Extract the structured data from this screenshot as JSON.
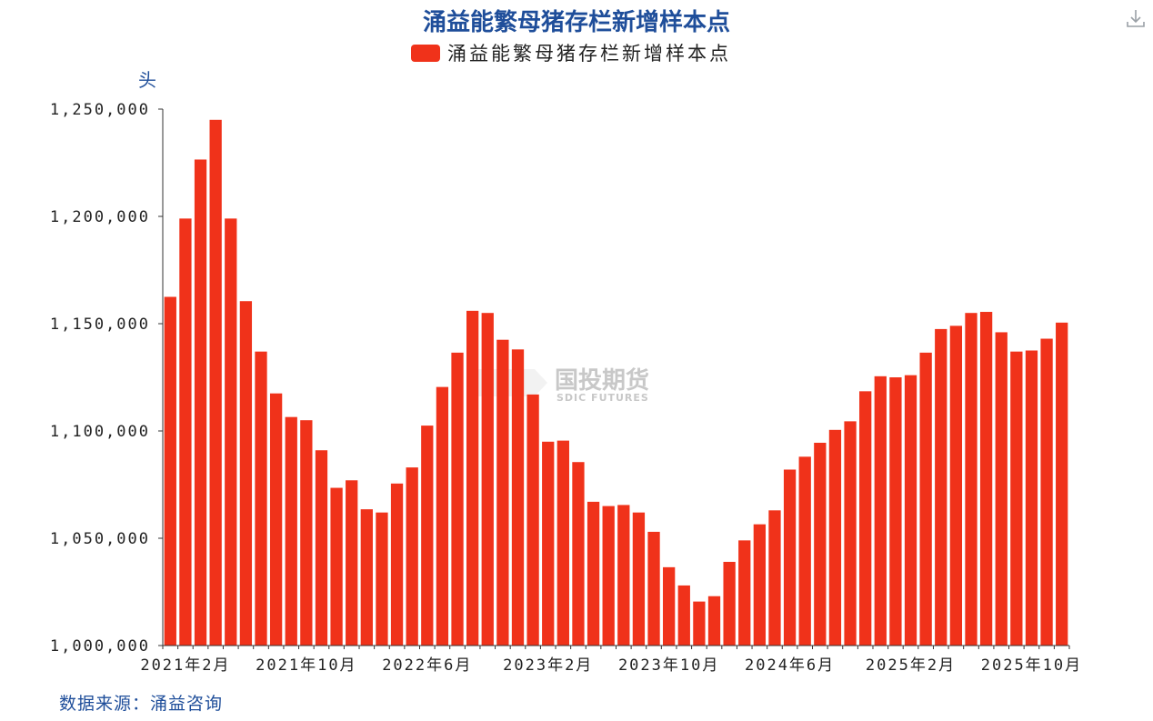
{
  "source": "数据来源：涌益咨询",
  "watermark": {
    "name_cn": "国投期货",
    "name_en": "SDIC FUTURES"
  },
  "toolbar": {
    "download_icon": "download-icon"
  },
  "colors": {
    "bar": "#f0321a",
    "title": "#1f4e9a",
    "axis": "#333333"
  },
  "chart_data": {
    "type": "bar",
    "title": "涌益能繁母猪存栏新增样本点",
    "legend": {
      "position": "top-center",
      "entries": [
        "涌益能繁母猪存栏新增样本点"
      ]
    },
    "unit": "头",
    "ylim": [
      1000000,
      1250000
    ],
    "yticks": [
      "1,000,000",
      "1,050,000",
      "1,100,000",
      "1,150,000",
      "1,200,000",
      "1,250,000"
    ],
    "grid": false,
    "x_tick_labels": [
      {
        "index": 1,
        "label": "2021年2月"
      },
      {
        "index": 9,
        "label": "2021年10月"
      },
      {
        "index": 17,
        "label": "2022年6月"
      },
      {
        "index": 25,
        "label": "2023年2月"
      },
      {
        "index": 33,
        "label": "2023年10月"
      },
      {
        "index": 41,
        "label": "2024年6月"
      },
      {
        "index": 49,
        "label": "2025年2月"
      },
      {
        "index": 57,
        "label": "2025年10月"
      }
    ],
    "categories": [
      "2021-01",
      "2021-02",
      "2021-03",
      "2021-04",
      "2021-05",
      "2021-06",
      "2021-07",
      "2021-08",
      "2021-09",
      "2021-10",
      "2021-11",
      "2021-12",
      "2022-01",
      "2022-02",
      "2022-03",
      "2022-04",
      "2022-05",
      "2022-06",
      "2022-07",
      "2022-08",
      "2022-09",
      "2022-10",
      "2022-11",
      "2022-12",
      "2023-01",
      "2023-02",
      "2023-03",
      "2023-04",
      "2023-05",
      "2023-06",
      "2023-07",
      "2023-08",
      "2023-09",
      "2023-10",
      "2023-11",
      "2023-12",
      "2024-01",
      "2024-02",
      "2024-03",
      "2024-04",
      "2024-05",
      "2024-06",
      "2024-07",
      "2024-08",
      "2024-09",
      "2024-10",
      "2024-11",
      "2024-12",
      "2025-01",
      "2025-02",
      "2025-03",
      "2025-04",
      "2025-05",
      "2025-06",
      "2025-07",
      "2025-08",
      "2025-09",
      "2025-10",
      "2025-11",
      "2025-12"
    ],
    "series": [
      {
        "name": "涌益能繁母猪存栏新增样本点",
        "values": [
          1162500,
          1199000,
          1226500,
          1245000,
          1199000,
          1160500,
          1137000,
          1117500,
          1106500,
          1105000,
          1091000,
          1073500,
          1077000,
          1063500,
          1062000,
          1075500,
          1083000,
          1102500,
          1120500,
          1136500,
          1156000,
          1155000,
          1142500,
          1138000,
          1117000,
          1095000,
          1095500,
          1085500,
          1067000,
          1065000,
          1065500,
          1062000,
          1053000,
          1036500,
          1028000,
          1020500,
          1023000,
          1039000,
          1049000,
          1056500,
          1063000,
          1082000,
          1088000,
          1094500,
          1100500,
          1104500,
          1118500,
          1125500,
          1125000,
          1126000,
          1136500,
          1147500,
          1149000,
          1155000,
          1155500,
          1146000,
          1137000,
          1137500,
          1143000,
          1150500
        ]
      }
    ]
  }
}
